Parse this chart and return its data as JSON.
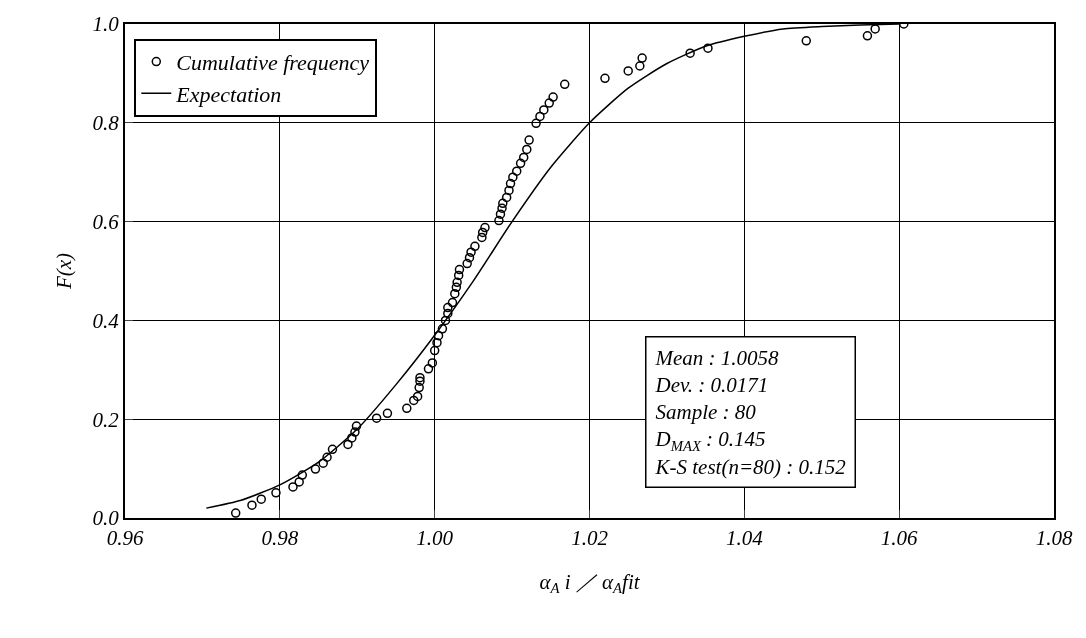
{
  "chart_data": {
    "type": "scatter",
    "xlabel": "α$_{A}$ i ／ α$_{A}$fit",
    "ylabel": "F(x)",
    "xlim": [
      0.96,
      1.08
    ],
    "xticks": [
      0.96,
      0.98,
      {
        "value": 1,
        "label": "1.00"
      },
      1.02,
      1.04,
      1.06,
      1.08
    ],
    "ylim": [
      0,
      1
    ],
    "yticks": [
      {
        "value": 0,
        "label": "0.0"
      },
      0.2,
      0.4,
      0.6,
      0.8,
      {
        "value": 1,
        "label": "1.0"
      }
    ],
    "grid": true,
    "legend": "top left",
    "marker": "circle",
    "series": [
      {
        "name": "Cumulative frequency",
        "color": "#000000",
        "x": [
          0.9743,
          0.9764,
          0.9776,
          0.9795,
          0.9817,
          0.9825,
          0.9829,
          0.9846,
          0.9856,
          0.9861,
          0.9868,
          0.9888,
          0.9893,
          0.9897,
          0.9899,
          0.9925,
          0.9939,
          0.9964,
          0.9973,
          0.9978,
          0.998,
          0.9981,
          0.9981,
          0.9992,
          0.9997,
          1.0,
          1.0003,
          1.0005,
          1.001,
          1.0014,
          1.0017,
          1.0017,
          1.0023,
          1.0026,
          1.0028,
          1.0029,
          1.0031,
          1.0032,
          1.0042,
          1.0045,
          1.0047,
          1.0052,
          1.0061,
          1.0062,
          1.0065,
          1.0083,
          1.0085,
          1.0087,
          1.0088,
          1.0093,
          1.0096,
          1.0098,
          1.0101,
          1.0106,
          1.0111,
          1.0115,
          1.0119,
          1.0122,
          1.0131,
          1.0136,
          1.0141,
          1.0148,
          1.0153,
          1.0168,
          1.022,
          1.025,
          1.0265,
          1.0268,
          1.033,
          1.0353,
          1.048,
          1.0559,
          1.0569,
          1.0606
        ],
        "values": [
          0.01,
          0.026,
          0.038,
          0.051,
          0.063,
          0.073,
          0.087,
          0.099,
          0.111,
          0.123,
          0.139,
          0.149,
          0.162,
          0.174,
          0.186,
          0.202,
          0.212,
          0.222,
          0.238,
          0.246,
          0.264,
          0.277,
          0.284,
          0.302,
          0.314,
          0.339,
          0.355,
          0.369,
          0.383,
          0.4,
          0.414,
          0.426,
          0.436,
          0.454,
          0.467,
          0.477,
          0.491,
          0.503,
          0.515,
          0.527,
          0.538,
          0.55,
          0.568,
          0.578,
          0.588,
          0.602,
          0.615,
          0.627,
          0.637,
          0.649,
          0.663,
          0.677,
          0.69,
          0.702,
          0.718,
          0.73,
          0.746,
          0.765,
          0.799,
          0.813,
          0.826,
          0.84,
          0.852,
          0.878,
          0.89,
          0.905,
          0.915,
          0.931,
          0.941,
          0.951,
          0.966,
          0.976,
          0.99,
          1.0
        ]
      },
      {
        "name": "Expectation",
        "type": "line",
        "color": "#000000",
        "marker": "none",
        "line_style": "solid",
        "x": [
          0.9705,
          0.975,
          0.98,
          0.985,
          0.99,
          0.995,
          1.0,
          1.005,
          1.01,
          1.015,
          1.02,
          1.025,
          1.03,
          1.035,
          1.04,
          1.045,
          1.05,
          1.055,
          1.06
        ],
        "values": [
          0.02,
          0.036,
          0.067,
          0.113,
          0.18,
          0.27,
          0.37,
          0.48,
          0.6,
          0.71,
          0.8,
          0.87,
          0.92,
          0.955,
          0.975,
          0.99,
          0.995,
          0.998,
          1.0
        ]
      }
    ],
    "annotations": [
      "Mean : 1.0058",
      "Dev. : 0.0171",
      "Sample : 80",
      "D$_{MAX}$ : 0.145",
      "K-S test(n=80) : 0.152"
    ]
  }
}
